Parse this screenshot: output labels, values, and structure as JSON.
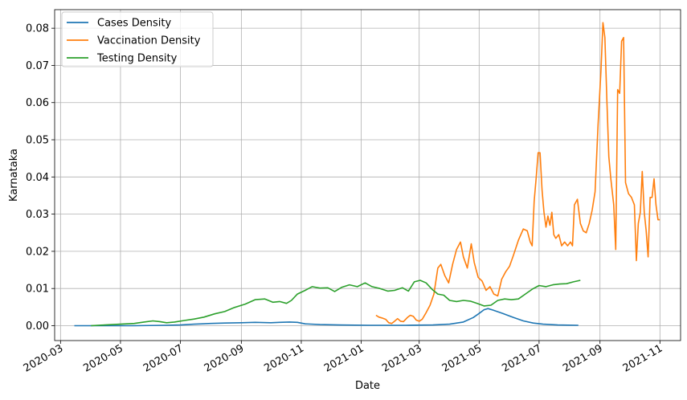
{
  "chart_data": {
    "type": "line",
    "title": "",
    "xlabel": "Date",
    "ylabel": "Karnataka",
    "xlim": [
      "2020-02-24",
      "2021-11-22"
    ],
    "ylim": [
      -0.004,
      0.085
    ],
    "grid": true,
    "legend_position": "top-left",
    "x_tick_labels": [
      "2020-03",
      "2020-05",
      "2020-07",
      "2020-09",
      "2020-11",
      "2021-01",
      "2021-03",
      "2021-05",
      "2021-07",
      "2021-09",
      "2021-11"
    ],
    "y_ticks": [
      0.0,
      0.01,
      0.02,
      0.03,
      0.04,
      0.05,
      0.06,
      0.07,
      0.08
    ],
    "y_tick_labels": [
      "0.00",
      "0.01",
      "0.02",
      "0.03",
      "0.04",
      "0.05",
      "0.06",
      "0.07",
      "0.08"
    ],
    "series": [
      {
        "name": "Cases Density",
        "color": "#1f77b4",
        "points": [
          [
            "2020-03-15",
            0.0
          ],
          [
            "2020-04-15",
            0.0
          ],
          [
            "2020-05-15",
            0.0
          ],
          [
            "2020-06-15",
            0.0001
          ],
          [
            "2020-07-01",
            0.0002
          ],
          [
            "2020-07-15",
            0.0004
          ],
          [
            "2020-08-01",
            0.0006
          ],
          [
            "2020-08-15",
            0.0007
          ],
          [
            "2020-09-01",
            0.0008
          ],
          [
            "2020-09-15",
            0.0009
          ],
          [
            "2020-10-01",
            0.0008
          ],
          [
            "2020-10-10",
            0.0009
          ],
          [
            "2020-10-20",
            0.001
          ],
          [
            "2020-10-28",
            0.0009
          ],
          [
            "2020-11-05",
            0.0005
          ],
          [
            "2020-11-20",
            0.0003
          ],
          [
            "2020-12-10",
            0.0002
          ],
          [
            "2021-01-10",
            0.0001
          ],
          [
            "2021-02-15",
            0.0001
          ],
          [
            "2021-03-15",
            0.0002
          ],
          [
            "2021-04-01",
            0.0004
          ],
          [
            "2021-04-15",
            0.001
          ],
          [
            "2021-04-25",
            0.0022
          ],
          [
            "2021-05-01",
            0.0033
          ],
          [
            "2021-05-06",
            0.0043
          ],
          [
            "2021-05-10",
            0.0046
          ],
          [
            "2021-05-15",
            0.0042
          ],
          [
            "2021-05-25",
            0.0033
          ],
          [
            "2021-06-05",
            0.0022
          ],
          [
            "2021-06-15",
            0.0013
          ],
          [
            "2021-06-25",
            0.0007
          ],
          [
            "2021-07-05",
            0.0004
          ],
          [
            "2021-07-20",
            0.0002
          ],
          [
            "2021-08-10",
            0.0001
          ]
        ]
      },
      {
        "name": "Vaccination Density",
        "color": "#ff7f0e",
        "points": [
          [
            "2021-01-16",
            0.0028
          ],
          [
            "2021-01-19",
            0.0023
          ],
          [
            "2021-01-22",
            0.0021
          ],
          [
            "2021-01-26",
            0.0017
          ],
          [
            "2021-01-29",
            0.0008
          ],
          [
            "2021-02-01",
            0.0006
          ],
          [
            "2021-02-04",
            0.0012
          ],
          [
            "2021-02-07",
            0.0019
          ],
          [
            "2021-02-10",
            0.0012
          ],
          [
            "2021-02-13",
            0.0011
          ],
          [
            "2021-02-17",
            0.0022
          ],
          [
            "2021-02-20",
            0.0028
          ],
          [
            "2021-02-23",
            0.0025
          ],
          [
            "2021-02-26",
            0.0015
          ],
          [
            "2021-03-01",
            0.0012
          ],
          [
            "2021-03-04",
            0.0017
          ],
          [
            "2021-03-08",
            0.0035
          ],
          [
            "2021-03-12",
            0.0055
          ],
          [
            "2021-03-16",
            0.0085
          ],
          [
            "2021-03-20",
            0.0155
          ],
          [
            "2021-03-23",
            0.0165
          ],
          [
            "2021-03-27",
            0.0135
          ],
          [
            "2021-03-31",
            0.0115
          ],
          [
            "2021-04-04",
            0.0165
          ],
          [
            "2021-04-08",
            0.0205
          ],
          [
            "2021-04-12",
            0.0225
          ],
          [
            "2021-04-15",
            0.0185
          ],
          [
            "2021-04-19",
            0.0155
          ],
          [
            "2021-04-23",
            0.022
          ],
          [
            "2021-04-26",
            0.017
          ],
          [
            "2021-04-30",
            0.013
          ],
          [
            "2021-05-04",
            0.012
          ],
          [
            "2021-05-08",
            0.0095
          ],
          [
            "2021-05-12",
            0.0105
          ],
          [
            "2021-05-16",
            0.0085
          ],
          [
            "2021-05-20",
            0.008
          ],
          [
            "2021-05-24",
            0.0125
          ],
          [
            "2021-05-28",
            0.0145
          ],
          [
            "2021-06-01",
            0.016
          ],
          [
            "2021-06-05",
            0.019
          ],
          [
            "2021-06-10",
            0.023
          ],
          [
            "2021-06-15",
            0.026
          ],
          [
            "2021-06-19",
            0.0255
          ],
          [
            "2021-06-22",
            0.0225
          ],
          [
            "2021-06-24",
            0.0215
          ],
          [
            "2021-06-26",
            0.0335
          ],
          [
            "2021-06-28",
            0.0395
          ],
          [
            "2021-06-30",
            0.0465
          ],
          [
            "2021-07-02",
            0.0465
          ],
          [
            "2021-07-04",
            0.0365
          ],
          [
            "2021-07-06",
            0.0305
          ],
          [
            "2021-07-08",
            0.0265
          ],
          [
            "2021-07-10",
            0.0295
          ],
          [
            "2021-07-12",
            0.027
          ],
          [
            "2021-07-14",
            0.0305
          ],
          [
            "2021-07-16",
            0.0245
          ],
          [
            "2021-07-18",
            0.0235
          ],
          [
            "2021-07-21",
            0.0245
          ],
          [
            "2021-07-24",
            0.0215
          ],
          [
            "2021-07-27",
            0.0225
          ],
          [
            "2021-07-30",
            0.0215
          ],
          [
            "2021-08-02",
            0.0225
          ],
          [
            "2021-08-04",
            0.0215
          ],
          [
            "2021-08-06",
            0.0325
          ],
          [
            "2021-08-09",
            0.034
          ],
          [
            "2021-08-12",
            0.0275
          ],
          [
            "2021-08-15",
            0.0255
          ],
          [
            "2021-08-18",
            0.025
          ],
          [
            "2021-08-21",
            0.0275
          ],
          [
            "2021-08-24",
            0.031
          ],
          [
            "2021-08-27",
            0.036
          ],
          [
            "2021-08-30",
            0.054
          ],
          [
            "2021-09-02",
            0.0685
          ],
          [
            "2021-09-04",
            0.0815
          ],
          [
            "2021-09-06",
            0.0775
          ],
          [
            "2021-09-08",
            0.0605
          ],
          [
            "2021-09-10",
            0.0455
          ],
          [
            "2021-09-12",
            0.0395
          ],
          [
            "2021-09-15",
            0.0325
          ],
          [
            "2021-09-17",
            0.0205
          ],
          [
            "2021-09-19",
            0.0635
          ],
          [
            "2021-09-21",
            0.0625
          ],
          [
            "2021-09-23",
            0.0765
          ],
          [
            "2021-09-25",
            0.0775
          ],
          [
            "2021-09-27",
            0.0385
          ],
          [
            "2021-09-30",
            0.0355
          ],
          [
            "2021-10-03",
            0.0345
          ],
          [
            "2021-10-06",
            0.0325
          ],
          [
            "2021-10-08",
            0.0175
          ],
          [
            "2021-10-10",
            0.0275
          ],
          [
            "2021-10-12",
            0.0305
          ],
          [
            "2021-10-14",
            0.0415
          ],
          [
            "2021-10-16",
            0.0305
          ],
          [
            "2021-10-18",
            0.0255
          ],
          [
            "2021-10-20",
            0.0185
          ],
          [
            "2021-10-22",
            0.0345
          ],
          [
            "2021-10-24",
            0.0345
          ],
          [
            "2021-10-26",
            0.0395
          ],
          [
            "2021-10-28",
            0.0325
          ],
          [
            "2021-10-30",
            0.0285
          ],
          [
            "2021-11-01",
            0.0285
          ]
        ]
      },
      {
        "name": "Testing Density",
        "color": "#2ca02c",
        "points": [
          [
            "2020-04-01",
            0.0
          ],
          [
            "2020-04-15",
            0.0002
          ],
          [
            "2020-05-01",
            0.0004
          ],
          [
            "2020-05-15",
            0.0006
          ],
          [
            "2020-05-25",
            0.001
          ],
          [
            "2020-06-03",
            0.0013
          ],
          [
            "2020-06-10",
            0.0011
          ],
          [
            "2020-06-17",
            0.0008
          ],
          [
            "2020-06-25",
            0.001
          ],
          [
            "2020-07-05",
            0.0014
          ],
          [
            "2020-07-15",
            0.0018
          ],
          [
            "2020-07-25",
            0.0023
          ],
          [
            "2020-08-05",
            0.0032
          ],
          [
            "2020-08-15",
            0.0038
          ],
          [
            "2020-08-25",
            0.0049
          ],
          [
            "2020-09-05",
            0.0058
          ],
          [
            "2020-09-15",
            0.007
          ],
          [
            "2020-09-25",
            0.0072
          ],
          [
            "2020-10-03",
            0.0063
          ],
          [
            "2020-10-10",
            0.0065
          ],
          [
            "2020-10-17",
            0.006
          ],
          [
            "2020-10-22",
            0.0068
          ],
          [
            "2020-10-28",
            0.0085
          ],
          [
            "2020-11-05",
            0.0095
          ],
          [
            "2020-11-12",
            0.0105
          ],
          [
            "2020-11-20",
            0.0101
          ],
          [
            "2020-11-28",
            0.0102
          ],
          [
            "2020-12-05",
            0.0092
          ],
          [
            "2020-12-12",
            0.0103
          ],
          [
            "2020-12-20",
            0.011
          ],
          [
            "2020-12-28",
            0.0105
          ],
          [
            "2021-01-05",
            0.0115
          ],
          [
            "2021-01-12",
            0.0105
          ],
          [
            "2021-01-20",
            0.01
          ],
          [
            "2021-01-28",
            0.0093
          ],
          [
            "2021-02-04",
            0.0095
          ],
          [
            "2021-02-12",
            0.0102
          ],
          [
            "2021-02-18",
            0.0093
          ],
          [
            "2021-02-24",
            0.0118
          ],
          [
            "2021-03-02",
            0.0122
          ],
          [
            "2021-03-08",
            0.0115
          ],
          [
            "2021-03-14",
            0.0098
          ],
          [
            "2021-03-20",
            0.0085
          ],
          [
            "2021-03-26",
            0.0082
          ],
          [
            "2021-04-01",
            0.0068
          ],
          [
            "2021-04-08",
            0.0065
          ],
          [
            "2021-04-15",
            0.0068
          ],
          [
            "2021-04-22",
            0.0066
          ],
          [
            "2021-04-29",
            0.006
          ],
          [
            "2021-05-06",
            0.0053
          ],
          [
            "2021-05-13",
            0.0055
          ],
          [
            "2021-05-20",
            0.0068
          ],
          [
            "2021-05-27",
            0.0072
          ],
          [
            "2021-06-03",
            0.007
          ],
          [
            "2021-06-10",
            0.0072
          ],
          [
            "2021-06-17",
            0.0085
          ],
          [
            "2021-06-24",
            0.0098
          ],
          [
            "2021-07-01",
            0.0108
          ],
          [
            "2021-07-08",
            0.0105
          ],
          [
            "2021-07-15",
            0.011
          ],
          [
            "2021-07-22",
            0.0112
          ],
          [
            "2021-07-29",
            0.0113
          ],
          [
            "2021-08-05",
            0.0118
          ],
          [
            "2021-08-12",
            0.0122
          ]
        ]
      }
    ]
  }
}
